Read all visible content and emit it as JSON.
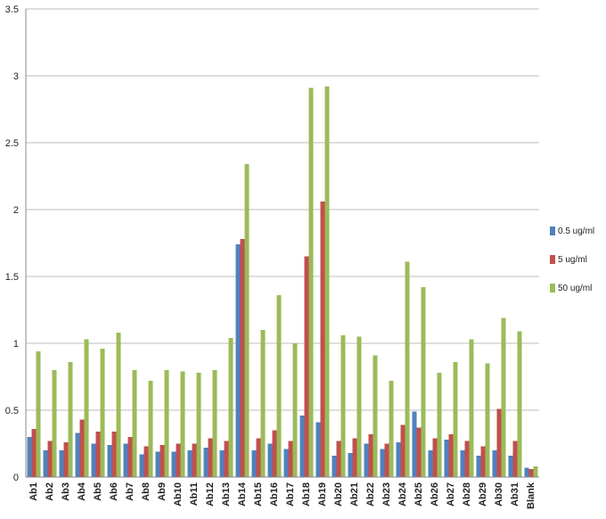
{
  "chart_data": {
    "type": "bar",
    "categories": [
      "Ab1",
      "Ab2",
      "Ab3",
      "Ab4",
      "Ab5",
      "Ab6",
      "Ab7",
      "Ab8",
      "Ab9",
      "Ab10",
      "Ab11",
      "Ab12",
      "Ab13",
      "Ab14",
      "Ab15",
      "Ab16",
      "Ab17",
      "Ab18",
      "Ab19",
      "Ab20",
      "Ab21",
      "Ab22",
      "Ab23",
      "Ab24",
      "Ab25",
      "Ab26",
      "Ab27",
      "Ab28",
      "Ab29",
      "Ab30",
      "Ab31",
      "Blank"
    ],
    "series": [
      {
        "name": "0.5 ug/ml",
        "color": "#4f81bd",
        "values": [
          0.3,
          0.2,
          0.2,
          0.33,
          0.25,
          0.24,
          0.25,
          0.17,
          0.19,
          0.19,
          0.2,
          0.22,
          0.2,
          1.74,
          0.2,
          0.25,
          0.21,
          0.46,
          0.41,
          0.16,
          0.18,
          0.25,
          0.21,
          0.26,
          0.49,
          0.2,
          0.28,
          0.2,
          0.16,
          0.2,
          0.16,
          0.07
        ]
      },
      {
        "name": "5 ug/ml",
        "color": "#c0504d",
        "values": [
          0.36,
          0.27,
          0.26,
          0.43,
          0.34,
          0.34,
          0.3,
          0.23,
          0.24,
          0.25,
          0.25,
          0.29,
          0.27,
          1.78,
          0.29,
          0.35,
          0.27,
          1.65,
          2.06,
          0.27,
          0.29,
          0.32,
          0.25,
          0.39,
          0.37,
          0.29,
          0.32,
          0.27,
          0.23,
          0.51,
          0.27,
          0.06
        ]
      },
      {
        "name": "50 ug/ml",
        "color": "#9bbb59",
        "values": [
          0.94,
          0.8,
          0.86,
          1.03,
          0.96,
          1.08,
          0.8,
          0.72,
          0.8,
          0.79,
          0.78,
          0.8,
          1.04,
          2.34,
          1.1,
          1.36,
          1.0,
          2.91,
          2.92,
          1.06,
          1.05,
          0.91,
          0.72,
          1.61,
          1.42,
          0.78,
          0.86,
          1.03,
          0.85,
          1.19,
          1.09,
          0.08
        ]
      }
    ],
    "ylim": [
      0,
      3.5
    ],
    "yticks": [
      "0",
      "0.5",
      "1",
      "1.5",
      "2",
      "2.5",
      "3",
      "3.5"
    ],
    "grid": true,
    "legend_position": "right"
  }
}
